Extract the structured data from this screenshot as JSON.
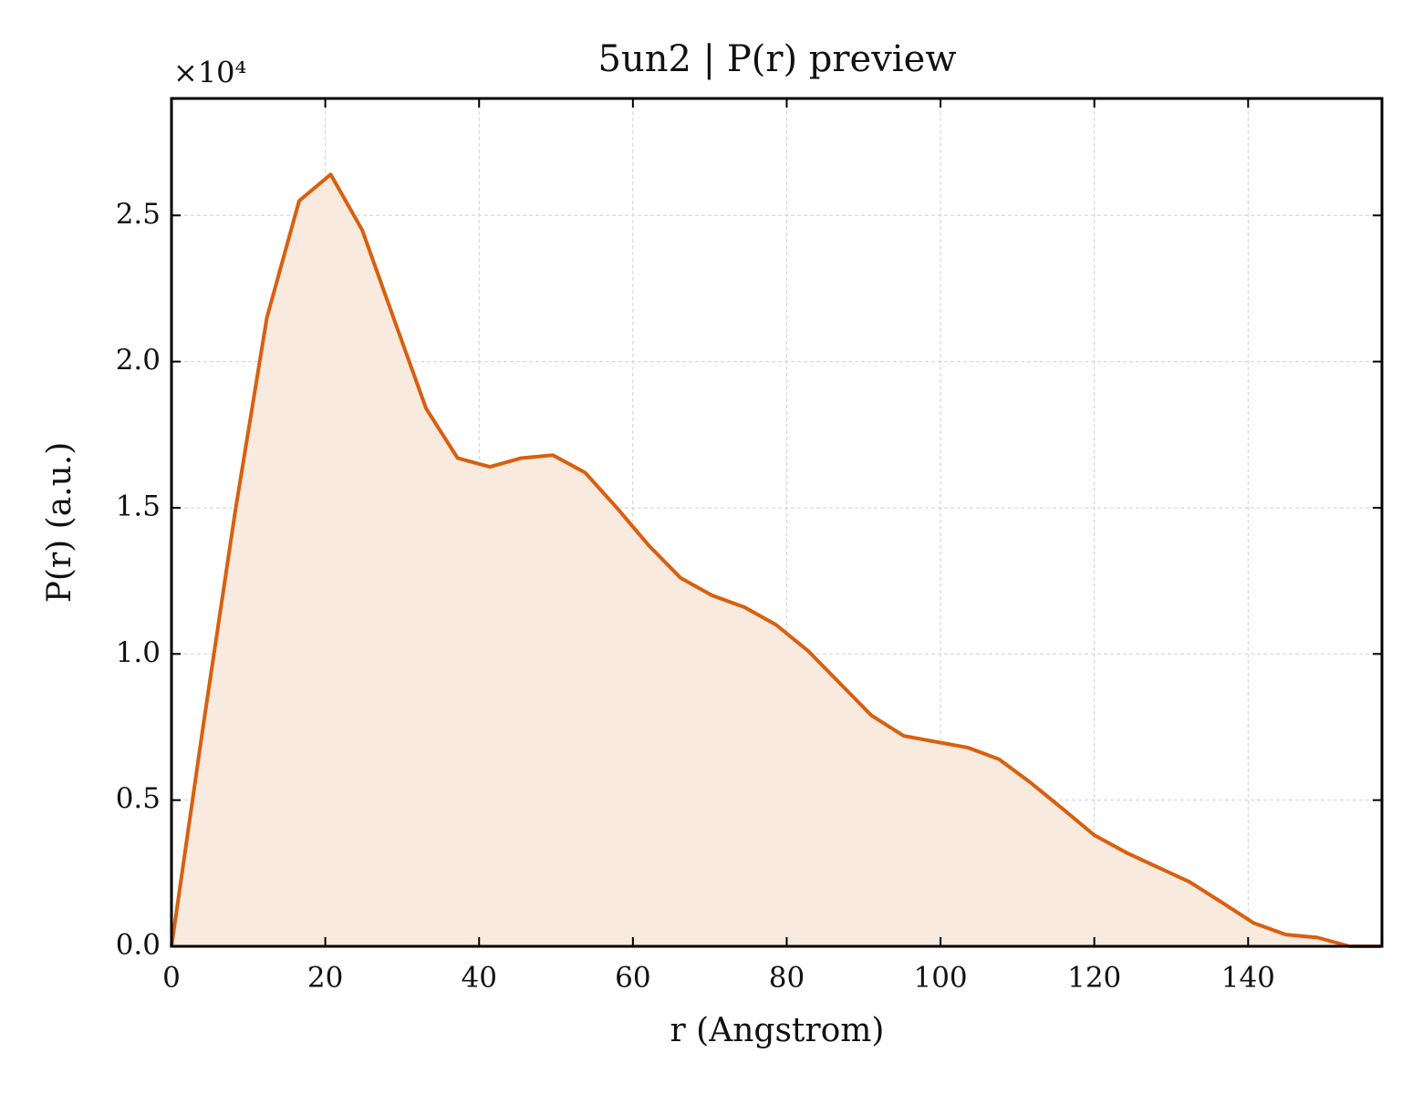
{
  "chart_data": {
    "type": "line",
    "title": "5un2 | P(r) preview",
    "xlabel": "r (Angstrom)",
    "ylabel": "P(r) (a.u.)",
    "y_offset_label": "×10⁴",
    "x": [
      0,
      4.1,
      8.3,
      12.4,
      16.6,
      20.7,
      24.8,
      29.0,
      33.1,
      37.2,
      41.4,
      45.5,
      49.6,
      53.8,
      57.9,
      62.1,
      66.2,
      70.3,
      74.5,
      78.6,
      82.8,
      86.9,
      91.0,
      95.2,
      99.3,
      103.5,
      107.6,
      111.7,
      115.9,
      120.0,
      124.2,
      128.3,
      132.4,
      136.6,
      140.7,
      144.9,
      149.0,
      153.2,
      157.3
    ],
    "values": [
      0,
      0.75,
      1.49,
      2.15,
      2.55,
      2.64,
      2.45,
      2.14,
      1.84,
      1.67,
      1.64,
      1.67,
      1.68,
      1.62,
      1.5,
      1.37,
      1.26,
      1.2,
      1.16,
      1.1,
      1.01,
      0.9,
      0.79,
      0.72,
      0.7,
      0.68,
      0.64,
      0.56,
      0.47,
      0.38,
      0.32,
      0.27,
      0.22,
      0.15,
      0.08,
      0.04,
      0.03,
      0,
      0
    ],
    "color": "#d95f0e",
    "fill_color": "#f9eadf",
    "xlim": [
      0,
      157.4
    ],
    "xticks": [
      0,
      20,
      40,
      60,
      80,
      100,
      120,
      140
    ],
    "ylim": [
      0,
      2.9
    ],
    "yticks": [
      {
        "value": 0,
        "label": "0.0"
      },
      {
        "value": 0.5,
        "label": "0.5"
      },
      {
        "value": 1,
        "label": "1.0"
      },
      {
        "value": 1.5,
        "label": "1.5"
      },
      {
        "value": 2,
        "label": "2.0"
      },
      2.5
    ],
    "grid": true
  }
}
